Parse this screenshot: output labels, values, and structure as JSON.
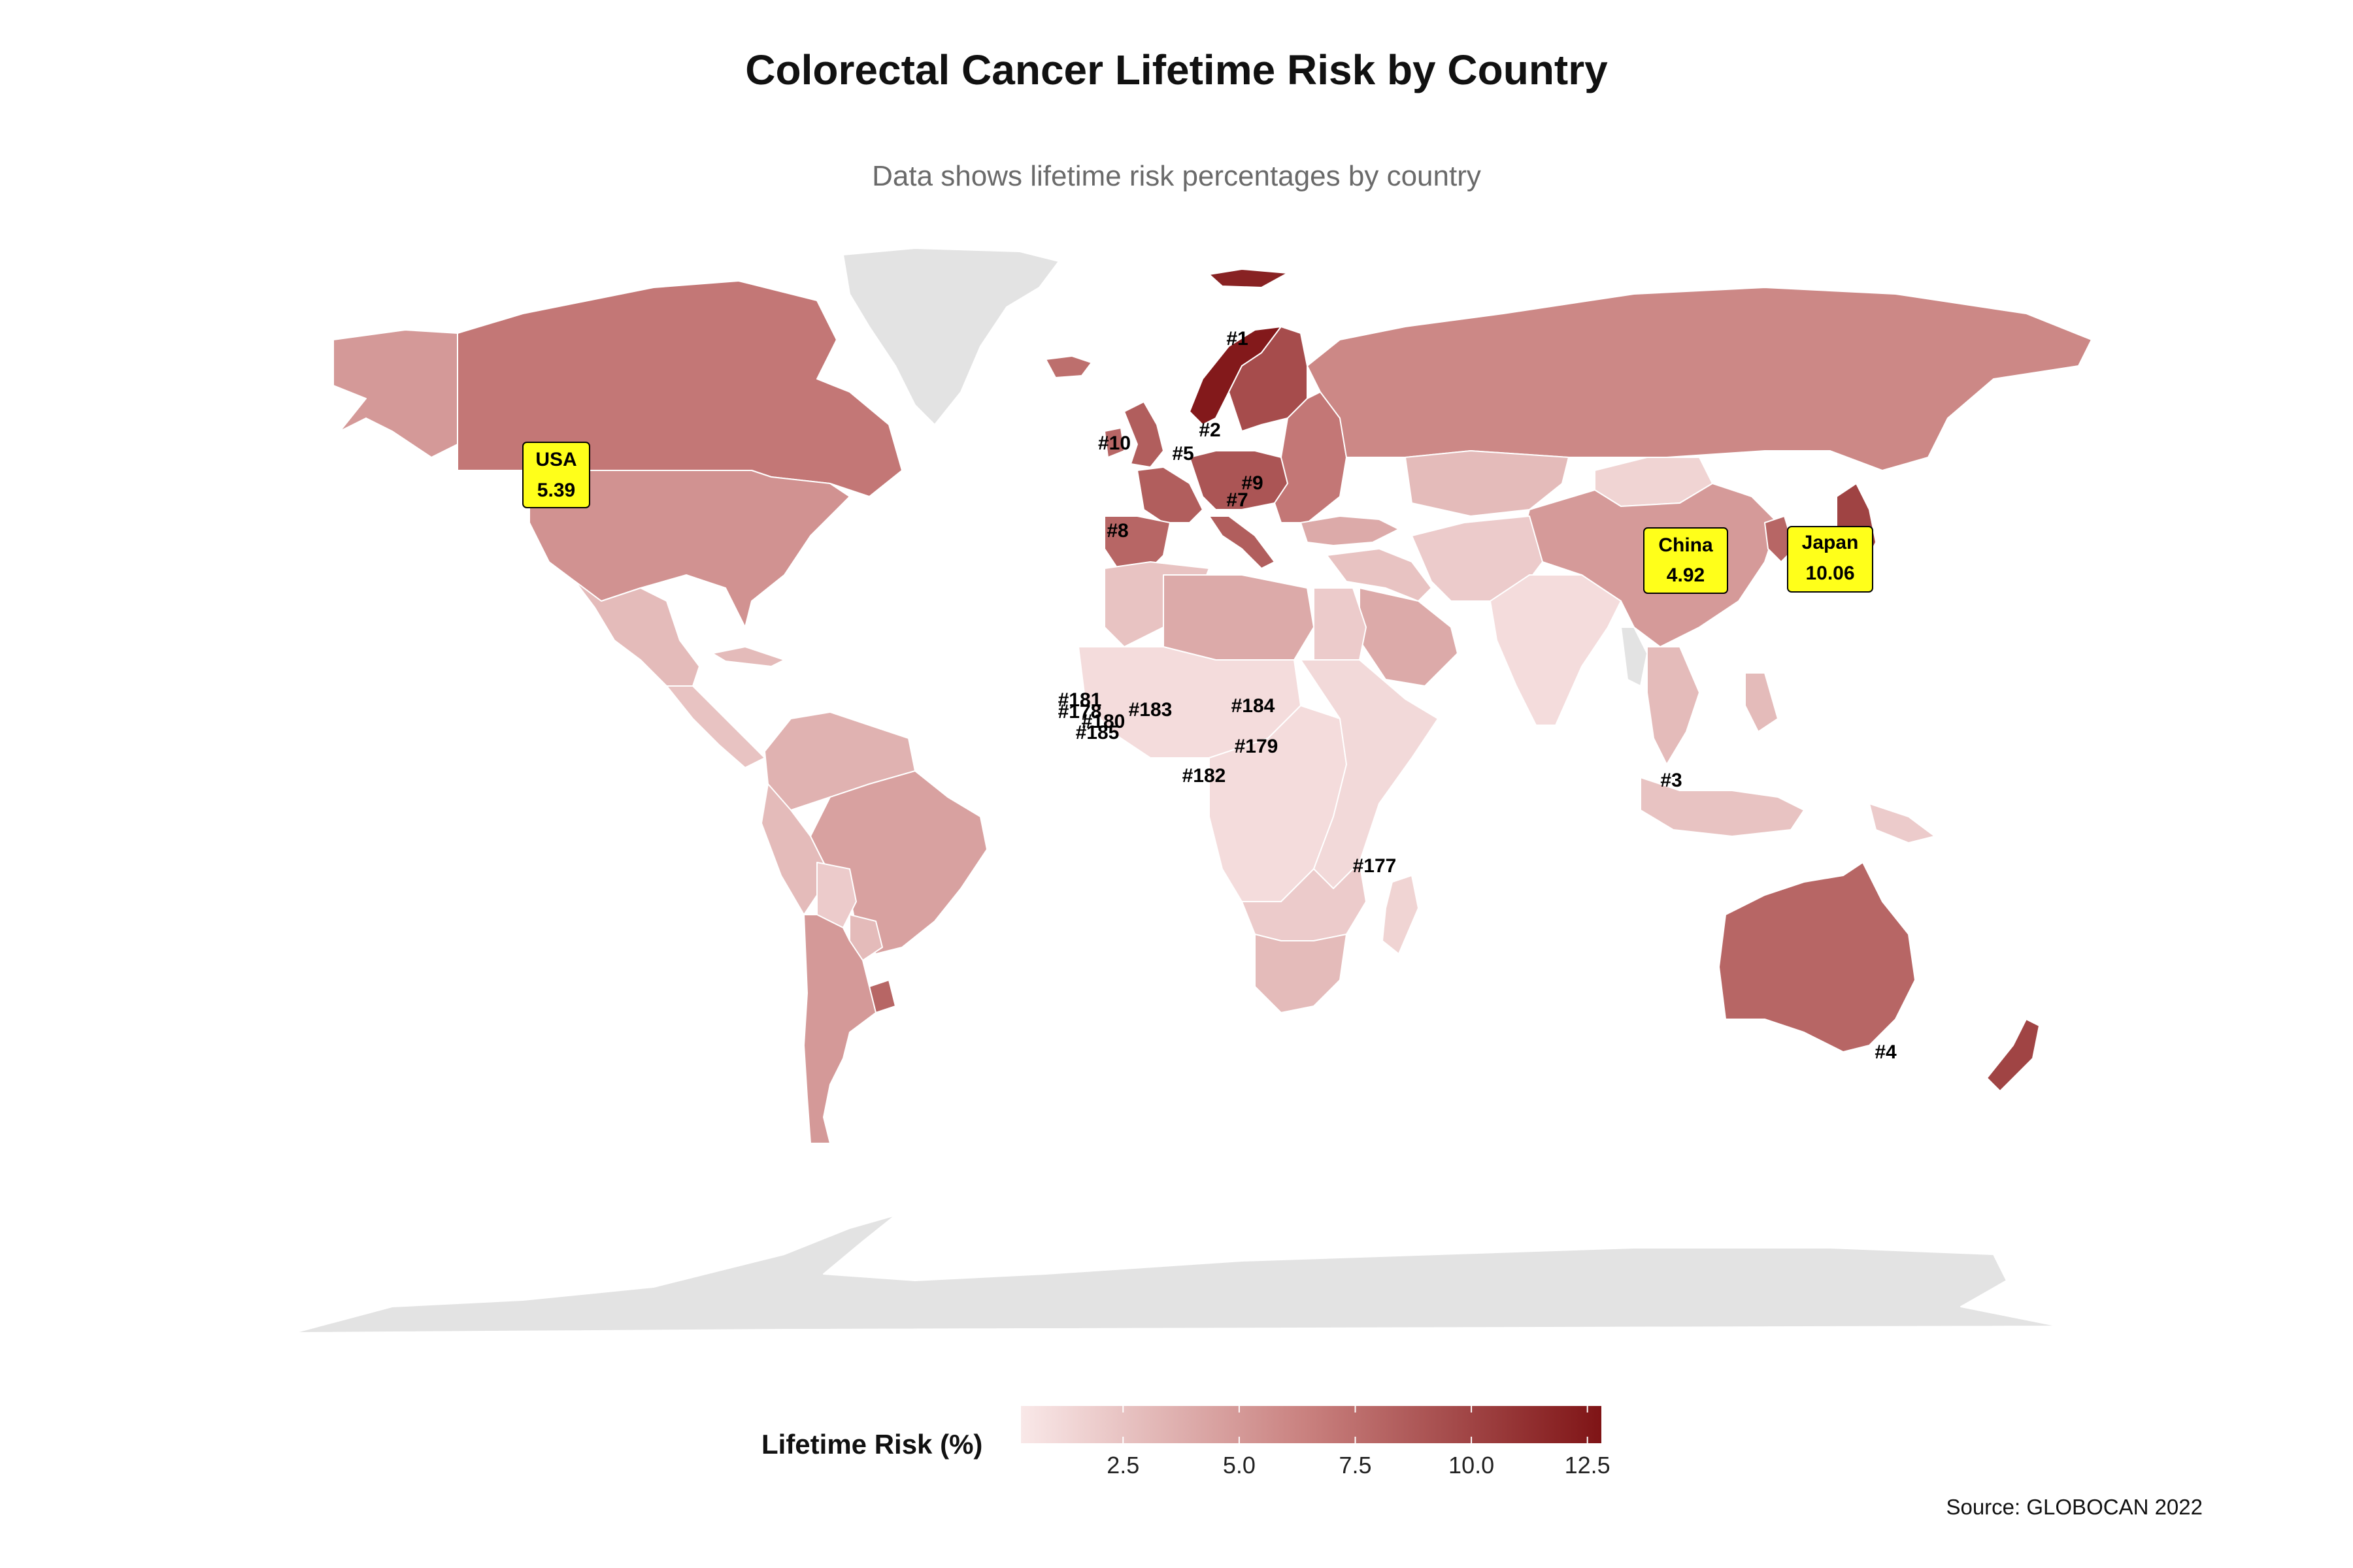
{
  "title": "Colorectal Cancer Lifetime Risk by Country",
  "subtitle": "Data shows lifetime risk percentages by country",
  "source": "Source: GLOBOCAN 2022",
  "legend": {
    "title": "Lifetime Risk (%)",
    "min": 0.3,
    "max": 12.8,
    "ticks": [
      "2.5",
      "5.0",
      "7.5",
      "10.0",
      "12.5"
    ],
    "tick_values": [
      2.5,
      5.0,
      7.5,
      10.0,
      12.5
    ],
    "low_color": "#f9e8e8",
    "high_color": "#7f1416"
  },
  "colors": {
    "no_data": "#e3e3e3",
    "highlight_box": "#ffff1a",
    "border": "#ffffff"
  },
  "highlights": [
    {
      "country": "USA",
      "value": "5.39"
    },
    {
      "country": "China",
      "value": "4.92"
    },
    {
      "country": "Japan",
      "value": "10.06"
    }
  ],
  "rank_labels": [
    "#1",
    "#2",
    "#3",
    "#4",
    "#5",
    "#7",
    "#8",
    "#9",
    "#10",
    "#177",
    "#179",
    "#181",
    "#182",
    "#183",
    "#184",
    "#185",
    "#178",
    "#180"
  ],
  "regions": [
    {
      "name": "greenland",
      "value": null
    },
    {
      "name": "antarctica",
      "value": null
    },
    {
      "name": "alaska",
      "value": 5.0
    },
    {
      "name": "canada",
      "value": 7.0
    },
    {
      "name": "usa",
      "value": 5.39
    },
    {
      "name": "mexico",
      "value": 3.0
    },
    {
      "name": "central-america",
      "value": 2.5
    },
    {
      "name": "cuba",
      "value": 3.0
    },
    {
      "name": "colombia-venezuela",
      "value": 3.5
    },
    {
      "name": "brazil",
      "value": 4.5
    },
    {
      "name": "peru",
      "value": 3.0
    },
    {
      "name": "bolivia",
      "value": 2.0
    },
    {
      "name": "paraguay",
      "value": 3.0
    },
    {
      "name": "uruguay",
      "value": 8.0
    },
    {
      "name": "argentina-chile",
      "value": 5.0
    },
    {
      "name": "iceland",
      "value": 7.5
    },
    {
      "name": "svalbard",
      "value": 12.0
    },
    {
      "name": "norway",
      "value": 12.5
    },
    {
      "name": "sweden-finland",
      "value": 9.5
    },
    {
      "name": "uk",
      "value": 8.5
    },
    {
      "name": "ireland",
      "value": 8.0
    },
    {
      "name": "france",
      "value": 8.5
    },
    {
      "name": "iberia",
      "value": 8.0
    },
    {
      "name": "central-europe",
      "value": 9.0
    },
    {
      "name": "italy",
      "value": 8.5
    },
    {
      "name": "eastern-europe",
      "value": 7.0
    },
    {
      "name": "russia",
      "value": 6.0
    },
    {
      "name": "turkey",
      "value": 4.0
    },
    {
      "name": "kazakhstan",
      "value": 3.0
    },
    {
      "name": "mongolia",
      "value": 1.5
    },
    {
      "name": "china",
      "value": 4.92
    },
    {
      "name": "japan",
      "value": 10.06
    },
    {
      "name": "korea",
      "value": 8.0
    },
    {
      "name": "middle-east",
      "value": 2.5
    },
    {
      "name": "saudi-arabia",
      "value": 4.0
    },
    {
      "name": "iran-central-asia",
      "value": 2.0
    },
    {
      "name": "india",
      "value": 1.0
    },
    {
      "name": "myanmar",
      "value": null
    },
    {
      "name": "southeast-asia",
      "value": 3.0
    },
    {
      "name": "philippines",
      "value": 3.0
    },
    {
      "name": "indonesia",
      "value": 2.5
    },
    {
      "name": "png",
      "value": 2.0
    },
    {
      "name": "australia",
      "value": 8.0
    },
    {
      "name": "new-zealand",
      "value": 10.0
    },
    {
      "name": "north-africa-west",
      "value": 2.5
    },
    {
      "name": "algeria-libya",
      "value": 4.0
    },
    {
      "name": "egypt",
      "value": 2.0
    },
    {
      "name": "sahel-west-africa",
      "value": 1.0
    },
    {
      "name": "central-africa",
      "value": 1.0
    },
    {
      "name": "east-africa",
      "value": 1.2
    },
    {
      "name": "southern-africa",
      "value": 2.0
    },
    {
      "name": "south-africa",
      "value": 3.0
    },
    {
      "name": "madagascar",
      "value": 1.5
    }
  ]
}
